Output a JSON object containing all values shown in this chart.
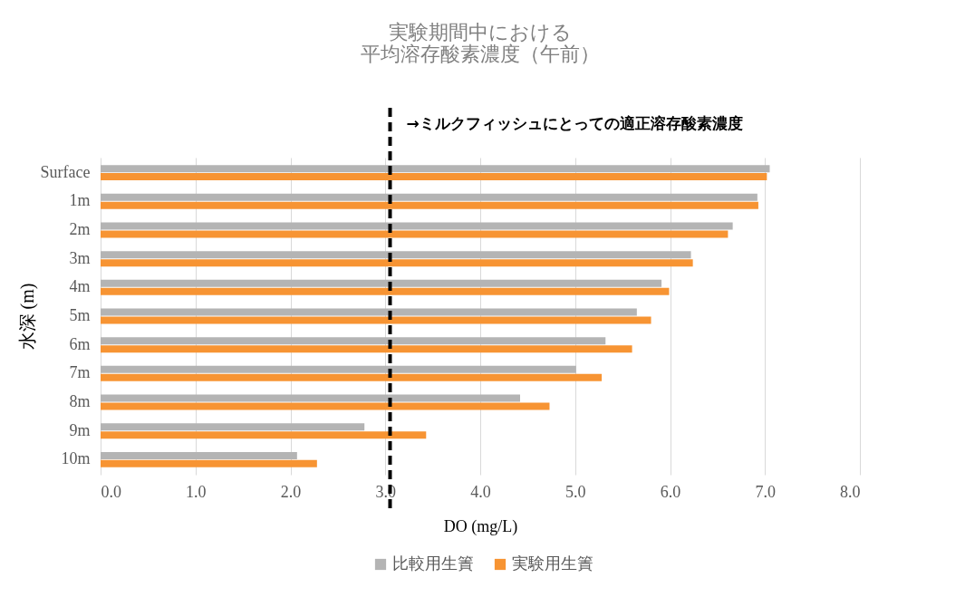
{
  "chart_data": {
    "type": "bar",
    "orientation": "horizontal",
    "title": "実験期間中における",
    "subtitle": "平均溶存酸素濃度（午前）",
    "xlabel": "DO (mg/L)",
    "ylabel": "水深 (m)",
    "categories": [
      "Surface",
      "1m",
      "2m",
      "3m",
      "4m",
      "5m",
      "6m",
      "7m",
      "8m",
      "9m",
      "10m"
    ],
    "series": [
      {
        "name": "比較用生簀",
        "color": "#b4b4b4",
        "values": [
          7.05,
          6.92,
          6.66,
          6.22,
          5.91,
          5.65,
          5.32,
          5.01,
          4.42,
          2.78,
          2.07
        ]
      },
      {
        "name": "実験用生簀",
        "color": "#f79433",
        "values": [
          7.02,
          6.93,
          6.61,
          6.24,
          5.99,
          5.8,
          5.6,
          5.28,
          4.73,
          3.43,
          2.28
        ]
      }
    ],
    "xlim": [
      0,
      8
    ],
    "xticks": [
      {
        "value": 0,
        "label": "0.0"
      },
      {
        "value": 1,
        "label": "1.0"
      },
      {
        "value": 2,
        "label": "2.0"
      },
      {
        "value": 3,
        "label": "3.0"
      },
      {
        "value": 4,
        "label": "4.0"
      },
      {
        "value": 5,
        "label": "5.0"
      },
      {
        "value": 6,
        "label": "6.0"
      },
      {
        "value": 7,
        "label": "7.0"
      },
      {
        "value": 8,
        "label": "8.0"
      }
    ],
    "ref_lines": [
      {
        "axis": "x",
        "value": 3.05,
        "label": "→ミルクフィッシュにとっての適正溶存酸素濃度",
        "color": "#000000",
        "line_style": "dashed"
      }
    ],
    "grid": "x",
    "legend": "bottom"
  }
}
